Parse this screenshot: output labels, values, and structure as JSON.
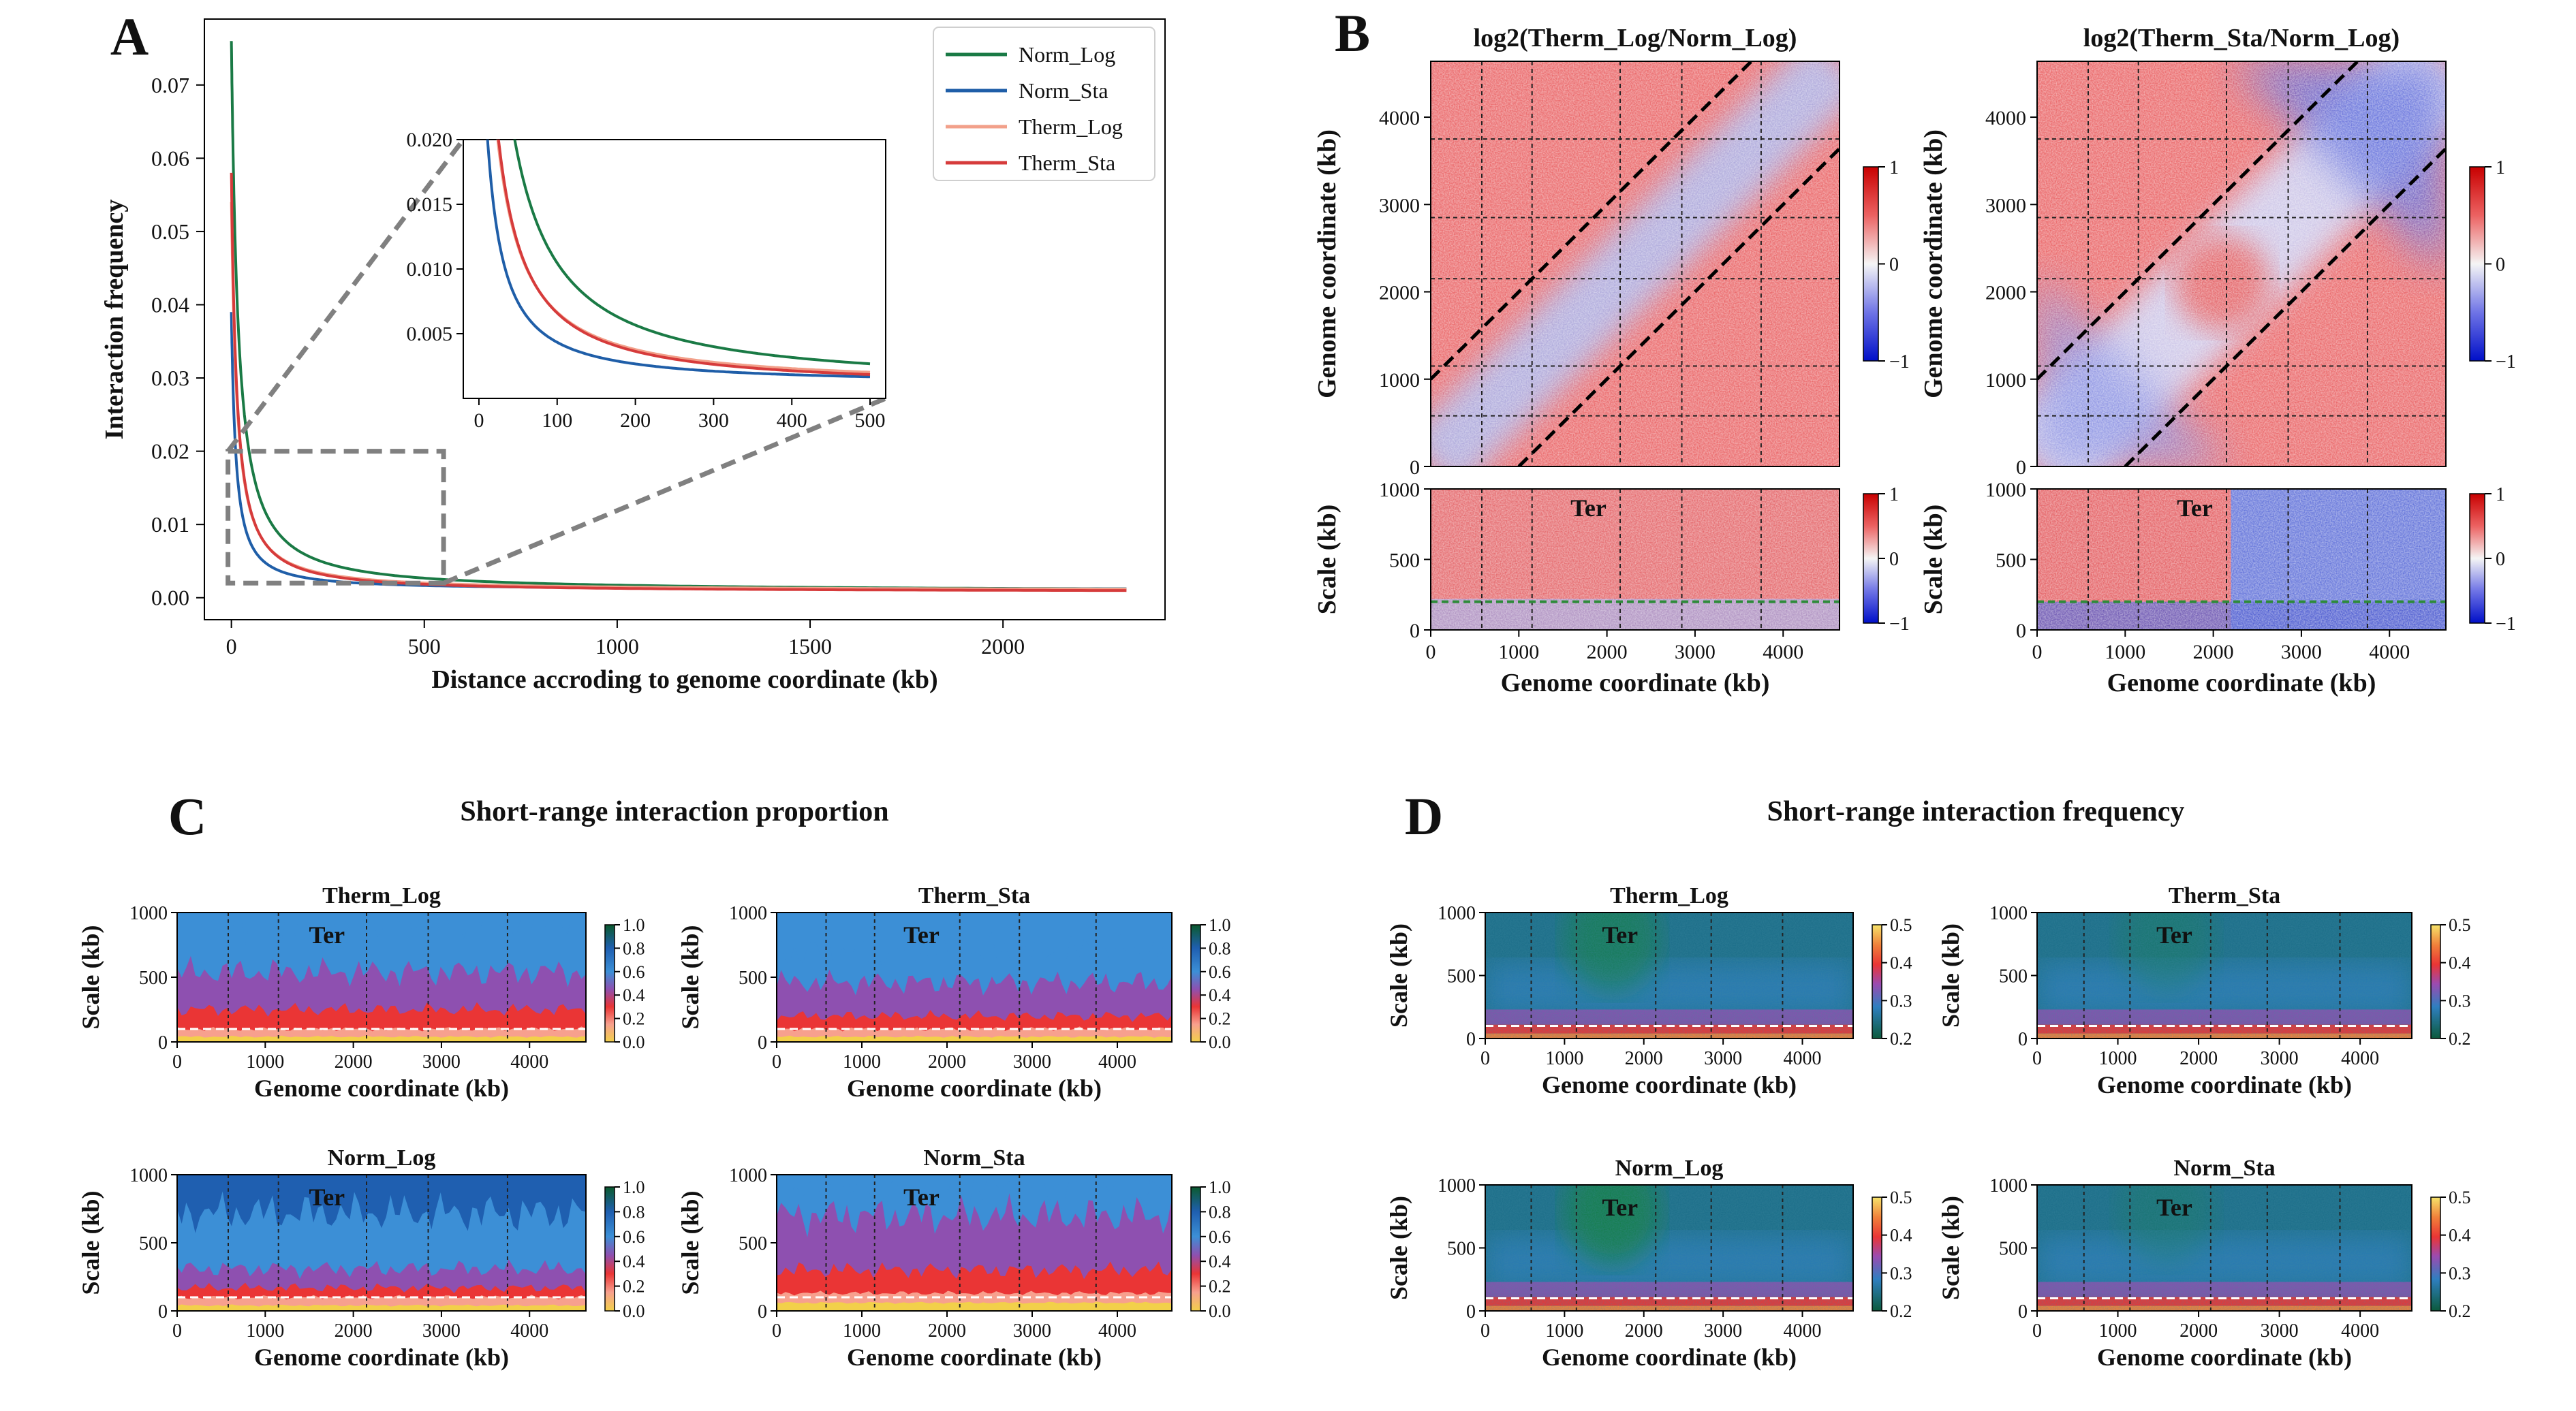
{
  "colors": {
    "norm_log": "#1a7a45",
    "norm_sta": "#1f5ea8",
    "therm_log": "#f2a08a",
    "therm_sta": "#d63b3b",
    "dash": "#808080",
    "diff_pos": "#d93030",
    "diff_neg": "#1a26c8",
    "ter_guide": "#2e8b3a"
  },
  "chart_data": [
    {
      "id": "A",
      "type": "line",
      "panel_label": "A",
      "xlabel": "Distance accroding to genome coordinate (kb)",
      "ylabel": "Interaction frequency",
      "xlim": [
        -70,
        2420
      ],
      "ylim": [
        -0.003,
        0.079
      ],
      "xticks": [
        "0",
        "500",
        "1000",
        "1500",
        "2000"
      ],
      "xtick_values": [
        0,
        500,
        1000,
        1500,
        2000
      ],
      "yticks": [
        "0.00",
        "0.01",
        "0.02",
        "0.03",
        "0.04",
        "0.05",
        "0.06",
        "0.07"
      ],
      "ytick_values": [
        0.0,
        0.01,
        0.02,
        0.03,
        0.04,
        0.05,
        0.06,
        0.07
      ],
      "x_max": 2320,
      "legend_position": "top-right",
      "series": [
        {
          "name": "Norm_Log",
          "color_key": "norm_log",
          "peak": 0.076,
          "tail": 0.0009,
          "decay_scale": 120
        },
        {
          "name": "Norm_Sta",
          "color_key": "norm_sta",
          "peak": 0.039,
          "tail": 0.0011,
          "decay_scale": 80
        },
        {
          "name": "Therm_Log",
          "color_key": "therm_log",
          "peak": 0.054,
          "tail": 0.001,
          "decay_scale": 100
        },
        {
          "name": "Therm_Sta",
          "color_key": "therm_sta",
          "peak": 0.058,
          "tail": 0.0008,
          "decay_scale": 95
        }
      ],
      "zoom_region": {
        "x": [
          0,
          550
        ],
        "y": [
          0.002,
          0.02
        ]
      },
      "inset": {
        "xlim": [
          -20,
          520
        ],
        "ylim": [
          0.0,
          0.02
        ],
        "xticks": [
          "0",
          "100",
          "200",
          "300",
          "400",
          "500"
        ],
        "xtick_values": [
          0,
          100,
          200,
          300,
          400,
          500
        ],
        "yticks": [
          "0.005",
          "0.010",
          "0.015",
          "0.020"
        ],
        "ytick_values": [
          0.005,
          0.01,
          0.015,
          0.02
        ]
      }
    },
    {
      "id": "B",
      "type": "heatmap",
      "panel_label": "B",
      "panels": [
        {
          "title": "log2(Therm_Log/Norm_Log)",
          "ter_label": "Ter",
          "pattern": "therm_log"
        },
        {
          "title": "log2(Therm_Sta/Norm_Log)",
          "ter_label": "Ter",
          "pattern": "therm_sta"
        }
      ],
      "map_ylabel": "Genome coordinate (kb)",
      "map_yticks": [
        "0",
        "1000",
        "2000",
        "3000",
        "4000"
      ],
      "map_ytick_values": [
        0,
        1000,
        2000,
        3000,
        4000
      ],
      "genome_length_kb": 4640,
      "scale_ylabel": "Scale (kb)",
      "scale_yticks": [
        "0",
        "500",
        "1000"
      ],
      "scale_ytick_values": [
        0,
        500,
        1000
      ],
      "xlabel": "Genome coordinate (kb)",
      "xticks": [
        "0",
        "1000",
        "2000",
        "3000",
        "4000"
      ],
      "xtick_values": [
        0,
        1000,
        2000,
        3000,
        4000
      ],
      "colorbar_ticks": [
        "1",
        "0",
        "−1"
      ],
      "colorbar_tick_values": [
        1,
        0,
        -1
      ],
      "grid_kb": [
        580,
        1150,
        2150,
        2850,
        3750
      ],
      "diagonal_offset_kb": 1000,
      "ter_guide_kb": 200
    },
    {
      "id": "C",
      "type": "area",
      "panel_label": "C",
      "title": "Short-range interaction proportion",
      "ylabel": "Scale (kb)",
      "xlabel": "Genome coordinate (kb)",
      "yticks": [
        "0",
        "500",
        "1000"
      ],
      "ytick_values": [
        0,
        500,
        1000
      ],
      "xticks": [
        "0",
        "1000",
        "2000",
        "3000",
        "4000"
      ],
      "xtick_values": [
        0,
        1000,
        2000,
        3000,
        4000
      ],
      "colorbar_ticks": [
        "1.0",
        "0.8",
        "0.6",
        "0.4",
        "0.2",
        "0.0"
      ],
      "colorbar_tick_values": [
        1.0,
        0.8,
        0.6,
        0.4,
        0.2,
        0.0
      ],
      "ter_label": "Ter",
      "dashed_line_kb": 100,
      "grid_kb": [
        580,
        1150,
        2150,
        2850,
        3750
      ],
      "panels": [
        {
          "title": "Therm_Log",
          "bands_kb": [
            40,
            100,
            250,
            540,
            960
          ],
          "top_color": "#3c8fd6"
        },
        {
          "title": "Therm_Sta",
          "bands_kb": [
            40,
            100,
            200,
            460,
            700
          ],
          "top_color": "#3c8fd6"
        },
        {
          "title": "Norm_Log",
          "bands_kb": [
            40,
            100,
            170,
            310,
            720
          ],
          "top_color": "#1f5fb0"
        },
        {
          "title": "Norm_Sta",
          "bands_kb": [
            60,
            130,
            300,
            700,
            920
          ],
          "top_color": "#3c8fd6"
        }
      ]
    },
    {
      "id": "D",
      "type": "heatmap",
      "panel_label": "D",
      "title": "Short-range interaction frequency",
      "ylabel": "Scale (kb)",
      "xlabel": "Genome coordinate (kb)",
      "yticks": [
        "0",
        "500",
        "1000"
      ],
      "ytick_values": [
        0,
        500,
        1000
      ],
      "xticks": [
        "0",
        "1000",
        "2000",
        "3000",
        "4000"
      ],
      "xtick_values": [
        0,
        1000,
        2000,
        3000,
        4000
      ],
      "colorbar_ticks": [
        "0.5",
        "0.4",
        "0.3",
        "0.2"
      ],
      "colorbar_tick_values": [
        0.5,
        0.4,
        0.3,
        0.2
      ],
      "ter_label": "Ter",
      "dashed_line_kb": 100,
      "grid_kb": [
        580,
        1150,
        2150,
        2850,
        3750
      ],
      "panels": [
        {
          "title": "Therm_Log",
          "ter_strength": 0.8
        },
        {
          "title": "Therm_Sta",
          "ter_strength": 0.4
        },
        {
          "title": "Norm_Log",
          "ter_strength": 1.0
        },
        {
          "title": "Norm_Sta",
          "ter_strength": 0.35
        }
      ]
    }
  ]
}
